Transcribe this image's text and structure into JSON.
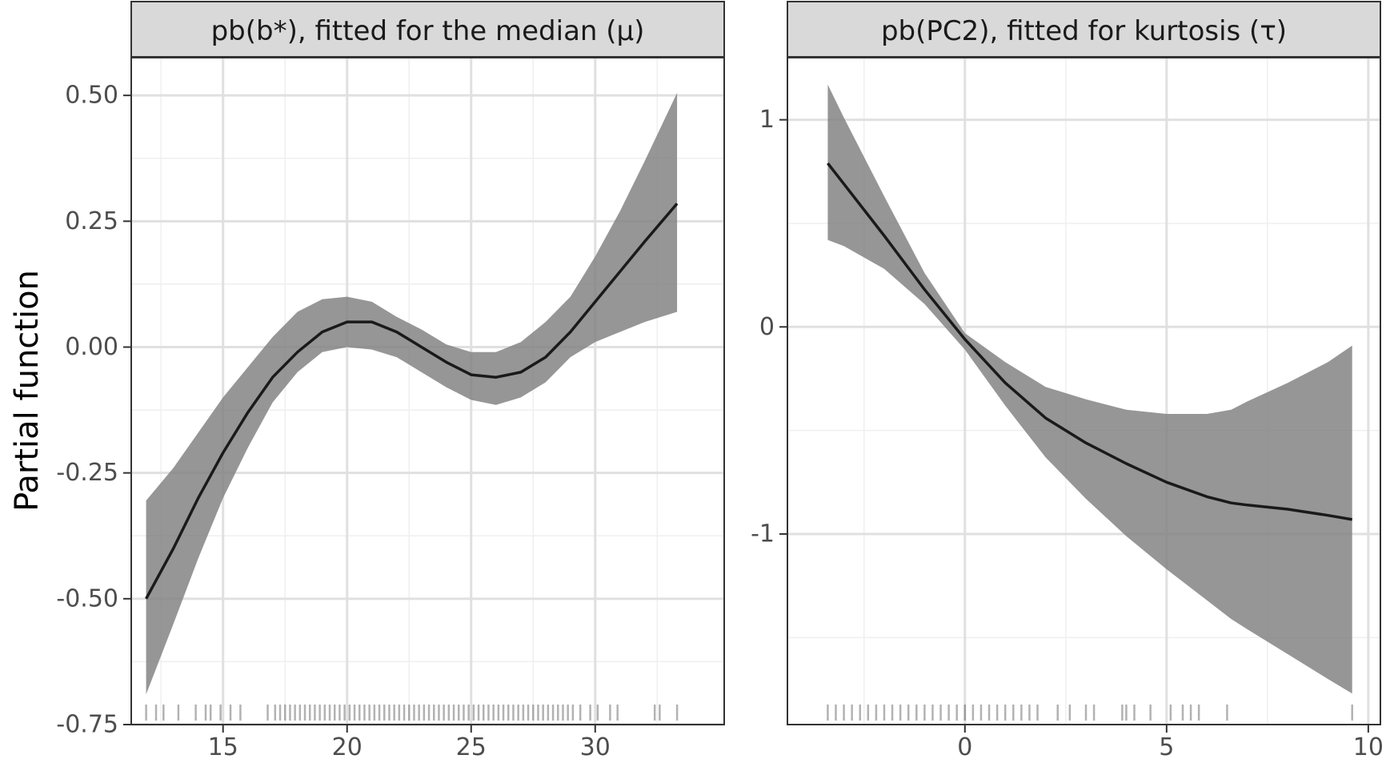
{
  "ylabel": "Partial function",
  "colors": {
    "band": "#7f7f7f",
    "line": "#1a1a1a",
    "grid_major": "#e0e0e0",
    "grid_minor": "#efefef",
    "strip_fill": "#d9d9d9",
    "frame": "#333333",
    "tick_text": "#4d4d4d",
    "rug": "#000000"
  },
  "chart_data": [
    {
      "type": "line",
      "title": "pb(b*), fitted for the median (μ)",
      "xlabel": "",
      "ylabel": "Partial function",
      "xlim": [
        11.3,
        35.2
      ],
      "ylim": [
        -0.75,
        0.575
      ],
      "x_ticks": [
        15,
        20,
        25,
        30
      ],
      "x_tick_labels": [
        "15",
        "20",
        "25",
        "30"
      ],
      "y_ticks": [
        -0.75,
        -0.5,
        -0.25,
        0.0,
        0.25,
        0.5
      ],
      "y_tick_labels": [
        "-0.75",
        "-0.50",
        "-0.25",
        "0.00",
        "0.25",
        "0.50"
      ],
      "grid": true,
      "series": [
        {
          "x": [
            11.9,
            13,
            14,
            15,
            16,
            17,
            18,
            19,
            20,
            21,
            22,
            23,
            24,
            25,
            26,
            27,
            28,
            29,
            30,
            31,
            32,
            33.3
          ],
          "y": [
            -0.5,
            -0.4,
            -0.3,
            -0.21,
            -0.13,
            -0.06,
            -0.01,
            0.03,
            0.05,
            0.05,
            0.03,
            0.0,
            -0.03,
            -0.055,
            -0.06,
            -0.05,
            -0.02,
            0.03,
            0.09,
            0.15,
            0.21,
            0.285
          ],
          "lower": [
            -0.69,
            -0.55,
            -0.42,
            -0.3,
            -0.2,
            -0.11,
            -0.05,
            -0.01,
            0.0,
            -0.005,
            -0.02,
            -0.05,
            -0.08,
            -0.105,
            -0.115,
            -0.1,
            -0.07,
            -0.02,
            0.01,
            0.03,
            0.05,
            0.07
          ],
          "upper": [
            -0.305,
            -0.24,
            -0.17,
            -0.1,
            -0.04,
            0.02,
            0.07,
            0.095,
            0.1,
            0.09,
            0.06,
            0.035,
            0.005,
            -0.01,
            -0.01,
            0.01,
            0.05,
            0.1,
            0.18,
            0.27,
            0.37,
            0.505
          ]
        }
      ],
      "rug": [
        11.9,
        12.3,
        12.6,
        13.2,
        13.9,
        14.3,
        14.5,
        14.9,
        15.3,
        15.7,
        16.8,
        17.1,
        17.3,
        17.5,
        17.7,
        17.9,
        18.1,
        18.3,
        18.5,
        18.7,
        18.9,
        19.1,
        19.3,
        19.5,
        19.7,
        19.9,
        20.1,
        20.3,
        20.5,
        20.7,
        20.9,
        21.1,
        21.3,
        21.5,
        21.7,
        21.9,
        22.1,
        22.3,
        22.5,
        22.7,
        22.9,
        23.1,
        23.3,
        23.5,
        23.7,
        23.9,
        24.1,
        24.3,
        24.5,
        24.7,
        24.9,
        25.1,
        25.3,
        25.5,
        25.7,
        25.9,
        26.1,
        26.3,
        26.5,
        26.7,
        26.9,
        27.1,
        27.3,
        27.5,
        27.7,
        27.9,
        28.1,
        28.3,
        28.5,
        28.7,
        28.9,
        29.1,
        29.4,
        29.8,
        30.1,
        30.6,
        30.9,
        32.4,
        32.6,
        33.3
      ]
    },
    {
      "type": "line",
      "title": "pb(PC2), fitted for kurtosis (τ)",
      "xlabel": "",
      "ylabel": "",
      "xlim": [
        -4.4,
        10.3
      ],
      "ylim": [
        -1.92,
        1.3
      ],
      "x_ticks": [
        0,
        5,
        10
      ],
      "x_tick_labels": [
        "0",
        "5",
        "10"
      ],
      "y_ticks": [
        -1,
        0,
        1
      ],
      "y_tick_labels": [
        "-1",
        "0",
        "1"
      ],
      "grid": true,
      "series": [
        {
          "x": [
            -3.4,
            -3,
            -2,
            -1,
            0,
            1,
            2,
            3,
            4,
            5,
            6,
            6.6,
            7,
            8,
            9,
            9.6
          ],
          "y": [
            0.79,
            0.69,
            0.44,
            0.18,
            -0.06,
            -0.27,
            -0.44,
            -0.56,
            -0.66,
            -0.75,
            -0.82,
            -0.85,
            -0.86,
            -0.88,
            -0.91,
            -0.93
          ],
          "lower": [
            0.42,
            0.39,
            0.28,
            0.11,
            -0.11,
            -0.38,
            -0.63,
            -0.83,
            -1.01,
            -1.17,
            -1.32,
            -1.41,
            -1.46,
            -1.58,
            -1.7,
            -1.77
          ],
          "upper": [
            1.17,
            1.01,
            0.63,
            0.26,
            -0.03,
            -0.17,
            -0.29,
            -0.35,
            -0.4,
            -0.42,
            -0.42,
            -0.4,
            -0.36,
            -0.27,
            -0.17,
            -0.09
          ]
        }
      ],
      "rug": [
        -3.4,
        -3.2,
        -3.0,
        -2.8,
        -2.6,
        -2.4,
        -2.2,
        -2.0,
        -1.8,
        -1.6,
        -1.4,
        -1.2,
        -1.0,
        -0.8,
        -0.6,
        -0.4,
        -0.2,
        0.0,
        0.2,
        0.4,
        0.6,
        0.8,
        1.0,
        1.2,
        1.4,
        1.6,
        1.8,
        2.3,
        2.6,
        3.0,
        3.2,
        3.9,
        4.0,
        4.2,
        4.6,
        5.1,
        5.4,
        5.6,
        5.8,
        6.5,
        9.6
      ]
    }
  ]
}
